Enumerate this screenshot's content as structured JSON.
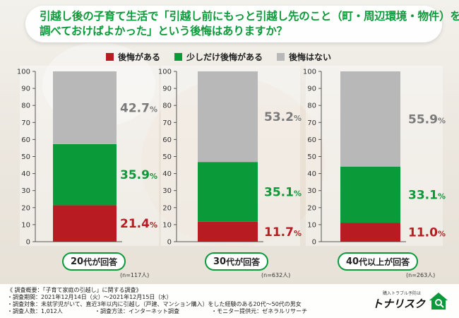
{
  "title": {
    "line1": "引越し後の子育て生活で「引越し前にもっと引越し先のこと（町・周辺環境・物件）を",
    "line2": "調べておけばよかった」という後悔はありますか？"
  },
  "legend": [
    {
      "label": "後悔がある",
      "color": "#b81c22"
    },
    {
      "label": "少しだけ後悔がある",
      "color": "#0b9a3a"
    },
    {
      "label": "後悔はない",
      "color": "#b8b8b8"
    }
  ],
  "chart_data": {
    "type": "bar",
    "stacked": true,
    "ylim": [
      0,
      100
    ],
    "yticks": [
      0,
      10,
      20,
      30,
      40,
      50,
      60,
      70,
      80,
      90,
      100
    ],
    "grid": false,
    "legend_position": "top",
    "categories": [
      "20代が回答",
      "30代が回答",
      "40代以上が回答"
    ],
    "category_parts": [
      {
        "num": "20",
        "suffix": "代が回答"
      },
      {
        "num": "30",
        "suffix": "代が回答"
      },
      {
        "num": "40",
        "suffix": "代以上が回答"
      }
    ],
    "n_labels": [
      "(n=117人)",
      "(n=632人)",
      "(n=263人)"
    ],
    "series": [
      {
        "name": "後悔がある",
        "color": "#b81c22",
        "values": [
          21.4,
          11.7,
          11.0
        ],
        "labels": [
          "21.4%",
          "11.7%",
          "11.0%"
        ]
      },
      {
        "name": "少しだけ後悔がある",
        "color": "#0b9a3a",
        "values": [
          35.9,
          35.1,
          33.1
        ],
        "labels": [
          "35.9%",
          "35.1%",
          "33.1%"
        ]
      },
      {
        "name": "後悔はない",
        "color": "#b8b8b8",
        "values": [
          42.7,
          53.2,
          55.9
        ],
        "labels": [
          "42.7%",
          "53.2%",
          "55.9%"
        ]
      }
    ]
  },
  "footer": {
    "lines": [
      "《 調査概要：「子育て家庭の引越し」に関する調査》",
      "・調査期間：2021年12月14日（火）～2021年12月15日（水）",
      "・調査対象：未就学児がいて、直近3年以内に引越し（戸建、マンション購入）をした経験のある20代～50代の男女"
    ],
    "row4": [
      "・調査人数：1,012人",
      "・調査方法：インターネット調査",
      "・モニター提供元：ゼネラルリサーチ"
    ]
  },
  "logo": {
    "tagline": "購入トラブル予防は",
    "name": "トナリスク"
  }
}
